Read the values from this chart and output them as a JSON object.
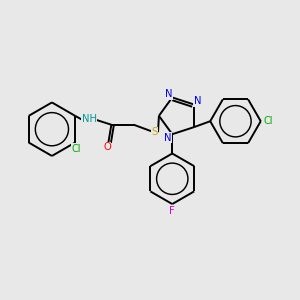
{
  "background_color": "#e8e8e8",
  "bond_color": "#000000",
  "colors": {
    "N": "#0000ee",
    "O": "#ff0000",
    "S": "#ccaa00",
    "Cl": "#00aa00",
    "F": "#cc00cc",
    "H": "#009999",
    "C": "#000000"
  },
  "figsize": [
    3.0,
    3.0
  ],
  "dpi": 100
}
